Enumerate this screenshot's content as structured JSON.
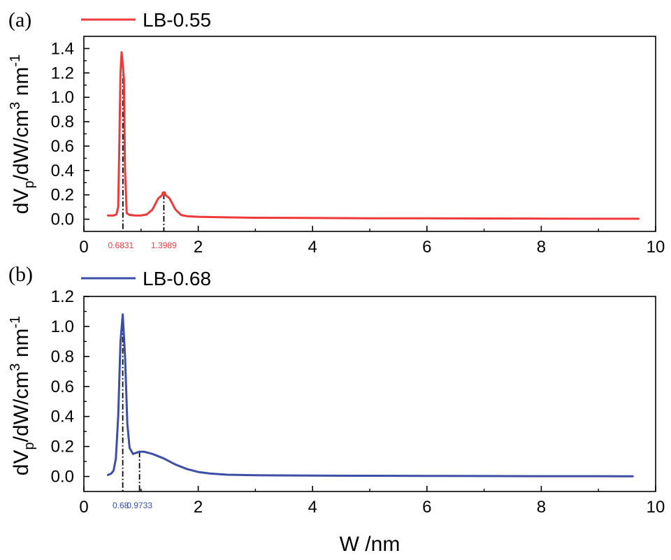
{
  "ylabel_parts": {
    "a": "dV",
    "b": "p",
    "c": "/dW/cm",
    "d": "3",
    "e": " nm",
    "f": "-1"
  },
  "chart_data": [
    {
      "type": "line",
      "panel_label": "(a)",
      "xlabel": "",
      "ylabel": "dVp/dW/cm3 nm-1",
      "xlim": [
        0,
        10
      ],
      "ylim": [
        -0.1,
        1.5
      ],
      "x_ticks": [
        0,
        2,
        4,
        6,
        8,
        10
      ],
      "x_tick_labels": [
        "0",
        "2",
        "4",
        "6",
        "8",
        "10"
      ],
      "y_ticks": [
        0.0,
        0.2,
        0.4,
        0.6,
        0.8,
        1.0,
        1.2,
        1.4
      ],
      "y_tick_labels": [
        "0.0",
        "0.2",
        "0.4",
        "0.6",
        "0.8",
        "1.0",
        "1.2",
        "1.4"
      ],
      "legend": "top-left",
      "series": [
        {
          "name": "LB-0.55",
          "color": "#ee3a3a",
          "x": [
            0.42,
            0.52,
            0.57,
            0.6,
            0.62,
            0.64,
            0.66,
            0.6831,
            0.7,
            0.72,
            0.75,
            0.8,
            0.9,
            1.0,
            1.1,
            1.2,
            1.3,
            1.3989,
            1.5,
            1.6,
            1.7,
            1.8,
            2.0,
            2.5,
            3.0,
            4.0,
            5.0,
            6.0,
            7.0,
            8.0,
            9.0,
            9.7
          ],
          "y": [
            0.03,
            0.03,
            0.04,
            0.1,
            0.6,
            1.2,
            1.37,
            1.25,
            1.15,
            0.4,
            0.05,
            0.035,
            0.03,
            0.03,
            0.04,
            0.08,
            0.17,
            0.21,
            0.17,
            0.08,
            0.035,
            0.025,
            0.02,
            0.015,
            0.012,
            0.01,
            0.008,
            0.007,
            0.006,
            0.005,
            0.004,
            0.004
          ]
        }
      ],
      "annotations": [
        {
          "x": 0.6831,
          "label": "0.6831"
        },
        {
          "x": 1.3989,
          "label": "1.3989"
        }
      ]
    },
    {
      "type": "line",
      "panel_label": "(b)",
      "xlabel": "W /nm",
      "ylabel": "dVp/dW/cm3 nm-1",
      "xlim": [
        0,
        10
      ],
      "ylim": [
        -0.1,
        1.2
      ],
      "x_ticks": [
        0,
        2,
        4,
        6,
        8,
        10
      ],
      "x_tick_labels": [
        "0",
        "2",
        "4",
        "6",
        "8",
        "10"
      ],
      "y_ticks": [
        0.0,
        0.2,
        0.4,
        0.6,
        0.8,
        1.0,
        1.2
      ],
      "y_tick_labels": [
        "0.0",
        "0.2",
        "0.4",
        "0.6",
        "0.8",
        "1.0",
        "1.2"
      ],
      "legend": "top-left",
      "series": [
        {
          "name": "LB-0.68",
          "color": "#3c4ea6",
          "x": [
            0.42,
            0.48,
            0.52,
            0.56,
            0.6,
            0.64,
            0.68,
            0.72,
            0.76,
            0.8,
            0.86,
            0.9733,
            1.05,
            1.2,
            1.4,
            1.6,
            1.8,
            2.0,
            2.2,
            2.5,
            3.0,
            4.0,
            5.0,
            6.0,
            7.0,
            8.0,
            9.0,
            9.6
          ],
          "y": [
            0.01,
            0.02,
            0.04,
            0.12,
            0.4,
            0.9,
            1.08,
            0.8,
            0.35,
            0.19,
            0.15,
            0.165,
            0.165,
            0.15,
            0.12,
            0.08,
            0.05,
            0.03,
            0.02,
            0.012,
            0.008,
            0.006,
            0.005,
            0.004,
            0.003,
            0.002,
            0.002,
            0.001
          ]
        }
      ],
      "annotations": [
        {
          "x": 0.68,
          "label": "0.68"
        },
        {
          "x": 0.9733,
          "label": "0.9733"
        }
      ]
    }
  ]
}
